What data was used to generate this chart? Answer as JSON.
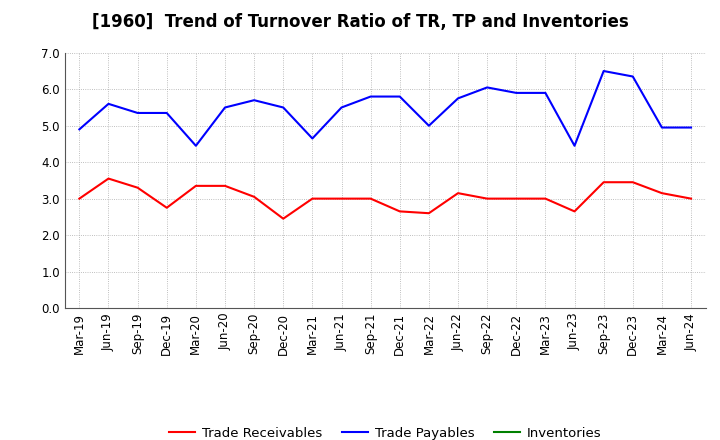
{
  "title": "[1960]  Trend of Turnover Ratio of TR, TP and Inventories",
  "x_labels": [
    "Mar-19",
    "Jun-19",
    "Sep-19",
    "Dec-19",
    "Mar-20",
    "Jun-20",
    "Sep-20",
    "Dec-20",
    "Mar-21",
    "Jun-21",
    "Sep-21",
    "Dec-21",
    "Mar-22",
    "Jun-22",
    "Sep-22",
    "Dec-22",
    "Mar-23",
    "Jun-23",
    "Sep-23",
    "Dec-23",
    "Mar-24",
    "Jun-24"
  ],
  "trade_receivables": [
    3.0,
    3.55,
    3.3,
    2.75,
    3.35,
    3.35,
    3.05,
    2.45,
    3.0,
    3.0,
    3.0,
    2.65,
    2.6,
    3.15,
    3.0,
    3.0,
    3.0,
    2.65,
    3.45,
    3.45,
    3.15,
    3.0
  ],
  "trade_payables": [
    4.9,
    5.6,
    5.35,
    5.35,
    4.45,
    5.5,
    5.7,
    5.5,
    4.65,
    5.5,
    5.8,
    5.8,
    5.0,
    5.75,
    6.05,
    5.9,
    5.9,
    4.45,
    6.5,
    6.35,
    4.95,
    4.95
  ],
  "inventories": [
    null,
    null,
    null,
    null,
    null,
    null,
    null,
    null,
    null,
    null,
    null,
    null,
    null,
    null,
    null,
    null,
    null,
    null,
    null,
    null,
    null,
    null
  ],
  "ylim": [
    0.0,
    7.0
  ],
  "yticks": [
    0.0,
    1.0,
    2.0,
    3.0,
    4.0,
    5.0,
    6.0,
    7.0
  ],
  "color_tr": "#FF0000",
  "color_tp": "#0000FF",
  "color_inv": "#008000",
  "legend_tr": "Trade Receivables",
  "legend_tp": "Trade Payables",
  "legend_inv": "Inventories",
  "bg_color": "#FFFFFF",
  "grid_color": "#AAAAAA",
  "title_fontsize": 12,
  "axis_fontsize": 8.5,
  "legend_fontsize": 9.5
}
